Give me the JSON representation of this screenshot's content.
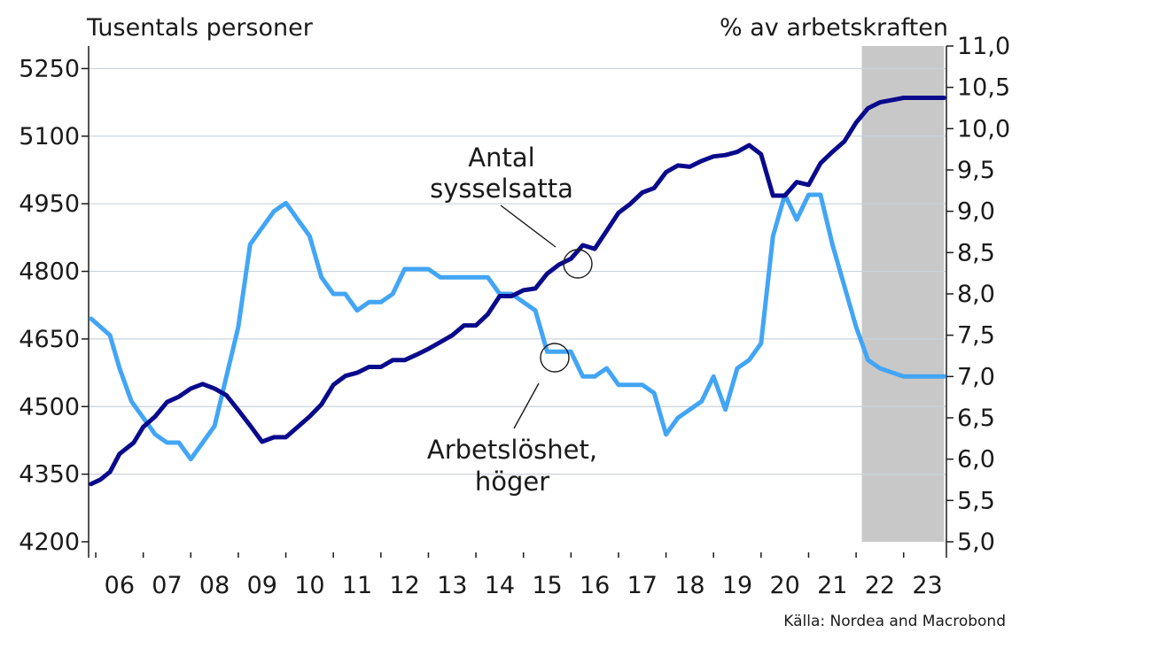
{
  "chart_data": {
    "type": "line",
    "left_axis_title": "Tusentals personer",
    "right_axis_title": "% av arbetskraften",
    "source": "Källa: Nordea and Macrobond",
    "x_range": [
      2005.85,
      2023.9
    ],
    "categories": [
      "06",
      "07",
      "08",
      "09",
      "10",
      "11",
      "12",
      "13",
      "14",
      "15",
      "16",
      "17",
      "18",
      "19",
      "20",
      "21",
      "22",
      "23"
    ],
    "left_ylim": [
      4200,
      5300
    ],
    "left_ticks": [
      "4200",
      "4350",
      "4500",
      "4650",
      "4800",
      "4950",
      "5100",
      "5250"
    ],
    "right_ylim": [
      5.0,
      11.0
    ],
    "right_ticks": [
      "5,0",
      "5,5",
      "6,0",
      "6,5",
      "7,0",
      "7,5",
      "8,0",
      "8,5",
      "9,0",
      "9,5",
      "10,0",
      "10,5",
      "11,0"
    ],
    "forecast_shade": {
      "from": 2022.12,
      "to": 2023.85,
      "color": "#c8c8c8"
    },
    "grid": true,
    "series": [
      {
        "name": "Antal sysselsatta",
        "axis": "left",
        "color": "#0a0a8c",
        "x": [
          2005.9,
          2006.1,
          2006.3,
          2006.5,
          2006.8,
          2007.0,
          2007.25,
          2007.5,
          2007.75,
          2008.0,
          2008.25,
          2008.5,
          2008.75,
          2009.0,
          2009.25,
          2009.5,
          2009.75,
          2010.0,
          2010.25,
          2010.5,
          2010.75,
          2011.0,
          2011.25,
          2011.5,
          2011.75,
          2012.0,
          2012.25,
          2012.5,
          2012.75,
          2013.0,
          2013.25,
          2013.5,
          2013.75,
          2014.0,
          2014.25,
          2014.5,
          2014.75,
          2015.0,
          2015.25,
          2015.5,
          2015.75,
          2016.0,
          2016.25,
          2016.5,
          2016.75,
          2017.0,
          2017.25,
          2017.5,
          2017.75,
          2018.0,
          2018.25,
          2018.5,
          2018.75,
          2019.0,
          2019.25,
          2019.5,
          2019.75,
          2020.0,
          2020.25,
          2020.5,
          2020.75,
          2021.0,
          2021.25,
          2021.5,
          2021.75,
          2022.0,
          2022.25,
          2022.5,
          2022.75,
          2023.0,
          2023.25,
          2023.5,
          2023.85
        ],
        "values": [
          4328,
          4338,
          4355,
          4395,
          4420,
          4455,
          4478,
          4510,
          4522,
          4540,
          4550,
          4540,
          4525,
          4492,
          4458,
          4422,
          4432,
          4432,
          4455,
          4478,
          4505,
          4548,
          4568,
          4575,
          4588,
          4588,
          4603,
          4603,
          4615,
          4628,
          4643,
          4658,
          4680,
          4680,
          4705,
          4745,
          4745,
          4758,
          4762,
          4795,
          4815,
          4828,
          4858,
          4850,
          4890,
          4930,
          4950,
          4975,
          4985,
          5020,
          5035,
          5032,
          5045,
          5055,
          5058,
          5065,
          5080,
          5060,
          4968,
          4968,
          4998,
          4992,
          5040,
          5065,
          5088,
          5130,
          5162,
          5175,
          5180,
          5185,
          5185,
          5185,
          5185
        ]
      },
      {
        "name": "Arbetslöshet, höger",
        "axis": "right",
        "color": "#42a5f5",
        "x": [
          2005.9,
          2006.1,
          2006.3,
          2006.5,
          2006.75,
          2007.0,
          2007.25,
          2007.5,
          2007.75,
          2008.0,
          2008.25,
          2008.5,
          2008.75,
          2009.0,
          2009.25,
          2009.5,
          2009.75,
          2010.0,
          2010.25,
          2010.5,
          2010.75,
          2011.0,
          2011.25,
          2011.5,
          2011.75,
          2012.0,
          2012.25,
          2012.5,
          2012.75,
          2013.0,
          2013.25,
          2013.5,
          2013.75,
          2014.0,
          2014.25,
          2014.5,
          2014.75,
          2015.0,
          2015.25,
          2015.5,
          2015.75,
          2016.0,
          2016.25,
          2016.5,
          2016.75,
          2017.0,
          2017.25,
          2017.5,
          2017.75,
          2018.0,
          2018.25,
          2018.5,
          2018.75,
          2019.0,
          2019.25,
          2019.5,
          2019.75,
          2020.0,
          2020.25,
          2020.5,
          2020.75,
          2021.0,
          2021.25,
          2021.5,
          2021.75,
          2022.0,
          2022.25,
          2022.5,
          2022.75,
          2023.0,
          2023.25,
          2023.5,
          2023.85
        ],
        "values": [
          7.7,
          7.6,
          7.5,
          7.1,
          6.7,
          6.5,
          6.3,
          6.2,
          6.2,
          6.0,
          6.2,
          6.4,
          7.0,
          7.6,
          8.6,
          8.8,
          9.0,
          9.1,
          8.9,
          8.7,
          8.2,
          8.0,
          8.0,
          7.8,
          7.9,
          7.9,
          8.0,
          8.3,
          8.3,
          8.3,
          8.2,
          8.2,
          8.2,
          8.2,
          8.2,
          8.0,
          8.0,
          7.9,
          7.8,
          7.3,
          7.3,
          7.3,
          7.0,
          7.0,
          7.1,
          6.9,
          6.9,
          6.9,
          6.8,
          6.3,
          6.5,
          6.6,
          6.7,
          7.0,
          6.6,
          7.1,
          7.2,
          7.4,
          8.7,
          9.2,
          8.9,
          9.2,
          9.2,
          8.6,
          8.1,
          7.6,
          7.2,
          7.1,
          7.05,
          7.0,
          7.0,
          7.0,
          7.0
        ]
      }
    ],
    "annotations": [
      {
        "lines": [
          "Antal",
          "sysselsatta"
        ],
        "points_to": "Antal sysselsatta"
      },
      {
        "lines": [
          "Arbetslöshet,",
          "höger"
        ],
        "points_to": "Arbetslöshet, höger"
      }
    ]
  }
}
